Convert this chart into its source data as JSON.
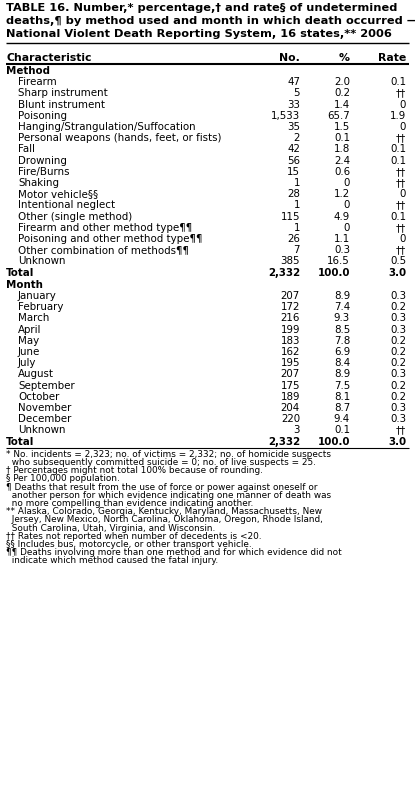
{
  "title_lines": [
    "TABLE 16. Number,* percentage,† and rate§ of undetermined",
    "deaths,¶ by method used and month in which death occurred —",
    "National Violent Death Reporting System, 16 states,** 2006"
  ],
  "col_headers": [
    "Characteristic",
    "No.",
    "%",
    "Rate"
  ],
  "sections": [
    {
      "section_title": "Method",
      "rows": [
        [
          "Firearm",
          "47",
          "2.0",
          "0.1"
        ],
        [
          "Sharp instrument",
          "5",
          "0.2",
          "††"
        ],
        [
          "Blunt instrument",
          "33",
          "1.4",
          "0"
        ],
        [
          "Poisoning",
          "1,533",
          "65.7",
          "1.9"
        ],
        [
          "Hanging/Strangulation/Suffocation",
          "35",
          "1.5",
          "0"
        ],
        [
          "Personal weapons (hands, feet, or fists)",
          "2",
          "0.1",
          "††"
        ],
        [
          "Fall",
          "42",
          "1.8",
          "0.1"
        ],
        [
          "Drowning",
          "56",
          "2.4",
          "0.1"
        ],
        [
          "Fire/Burns",
          "15",
          "0.6",
          "††"
        ],
        [
          "Shaking",
          "1",
          "0",
          "††"
        ],
        [
          "Motor vehicle§§",
          "28",
          "1.2",
          "0"
        ],
        [
          "Intentional neglect",
          "1",
          "0",
          "††"
        ],
        [
          "Other (single method)",
          "115",
          "4.9",
          "0.1"
        ],
        [
          "Firearm and other method type¶¶",
          "1",
          "0",
          "††"
        ],
        [
          "Poisoning and other method type¶¶",
          "26",
          "1.1",
          "0"
        ],
        [
          "Other combination of methods¶¶",
          "7",
          "0.3",
          "††"
        ],
        [
          "Unknown",
          "385",
          "16.5",
          "0.5"
        ]
      ],
      "total_row": [
        "Total",
        "2,332",
        "100.0",
        "3.0"
      ]
    },
    {
      "section_title": "Month",
      "rows": [
        [
          "January",
          "207",
          "8.9",
          "0.3"
        ],
        [
          "February",
          "172",
          "7.4",
          "0.2"
        ],
        [
          "March",
          "216",
          "9.3",
          "0.3"
        ],
        [
          "April",
          "199",
          "8.5",
          "0.3"
        ],
        [
          "May",
          "183",
          "7.8",
          "0.2"
        ],
        [
          "June",
          "162",
          "6.9",
          "0.2"
        ],
        [
          "July",
          "195",
          "8.4",
          "0.2"
        ],
        [
          "August",
          "207",
          "8.9",
          "0.3"
        ],
        [
          "September",
          "175",
          "7.5",
          "0.2"
        ],
        [
          "October",
          "189",
          "8.1",
          "0.2"
        ],
        [
          "November",
          "204",
          "8.7",
          "0.3"
        ],
        [
          "December",
          "220",
          "9.4",
          "0.3"
        ],
        [
          "Unknown",
          "3",
          "0.1",
          "††"
        ]
      ],
      "total_row": [
        "Total",
        "2,332",
        "100.0",
        "3.0"
      ]
    }
  ],
  "footnotes": [
    [
      "* No. incidents = 2,323; no. of victims = 2,332; no. of homicide suspects",
      "  who subsequently committed suicide = 0; no. of live suspects = 25."
    ],
    [
      "† Percentages might not total 100% because of rounding."
    ],
    [
      "§ Per 100,000 population."
    ],
    [
      "¶ Deaths that result from the use of force or power against oneself or",
      "  another person for which evidence indicating one manner of death was",
      "  no more compelling than evidence indicating another."
    ],
    [
      "** Alaska, Colorado, Georgia, Kentucky, Maryland, Massachusetts, New",
      "  Jersey, New Mexico, North Carolina, Oklahoma, Oregon, Rhode Island,",
      "  South Carolina, Utah, Virginia, and Wisconsin."
    ],
    [
      "†† Rates not reported when number of decedents is <20."
    ],
    [
      "§§ Includes bus, motorcycle, or other transport vehicle."
    ],
    [
      "¶¶ Deaths involving more than one method and for which evidence did not",
      "  indicate which method caused the fatal injury."
    ]
  ],
  "bg_color": "#ffffff",
  "text_color": "#000000"
}
